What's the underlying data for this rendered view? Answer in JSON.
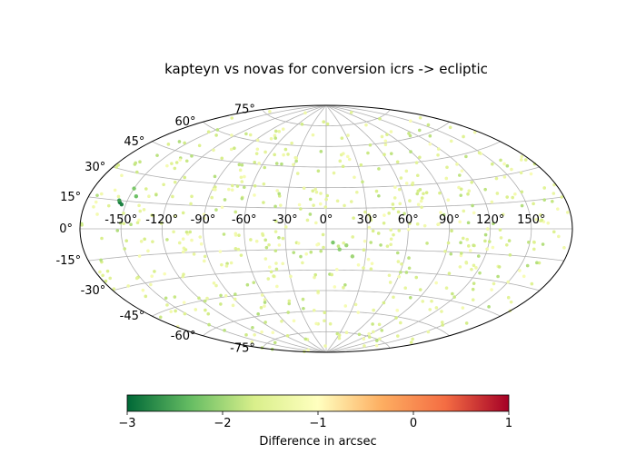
{
  "chart_data": {
    "type": "scatter",
    "projection": "aitoff",
    "title": "kapteyn vs novas for conversion icrs -> ecliptic",
    "x_ticks": [
      "-150°",
      "-120°",
      "-90°",
      "-60°",
      "-30°",
      "0°",
      "30°",
      "60°",
      "90°",
      "120°",
      "150°"
    ],
    "x_tick_values": [
      -150,
      -120,
      -90,
      -60,
      -30,
      0,
      30,
      60,
      90,
      120,
      150
    ],
    "y_ticks": [
      "-75°",
      "-60°",
      "-45°",
      "-30°",
      "-15°",
      "0°",
      "15°",
      "30°",
      "45°",
      "60°",
      "75°"
    ],
    "y_tick_values": [
      -75,
      -60,
      -45,
      -30,
      -15,
      0,
      15,
      30,
      45,
      60,
      75
    ],
    "xlim": [
      -180,
      180
    ],
    "ylim": [
      -90,
      90
    ],
    "grid": true,
    "colormap": "RdYlGn_r",
    "colorbar": {
      "label": "Difference in arcsec",
      "range": [
        -3,
        1
      ],
      "ticks": [
        "−3",
        "−2",
        "−1",
        "0",
        "1"
      ],
      "tick_values": [
        -3,
        -2,
        -1,
        0,
        1
      ],
      "colors": [
        "#006837",
        "#66bd63",
        "#d9ef8b",
        "#ffffbf",
        "#fdae61",
        "#f46d43",
        "#a50026"
      ]
    },
    "series": [
      {
        "point_count": 600,
        "typical_value": -1.5,
        "highlighted_points": [
          {
            "lon": -155,
            "lat": 14,
            "value": -2.9
          },
          {
            "lon": -153,
            "lat": 13,
            "value": -2.8
          },
          {
            "lon": -156,
            "lat": 15,
            "value": -2.6
          },
          {
            "lon": -145,
            "lat": 18,
            "value": -2.3
          },
          {
            "lon": -150,
            "lat": 22,
            "value": -2.2
          },
          {
            "lon": 5,
            "lat": -10,
            "value": -2.2
          },
          {
            "lon": 10,
            "lat": -15,
            "value": -2.1
          },
          {
            "lon": 15,
            "lat": -12,
            "value": -2.0
          },
          {
            "lon": 20,
            "lat": -20,
            "value": -2.0
          }
        ]
      }
    ]
  }
}
